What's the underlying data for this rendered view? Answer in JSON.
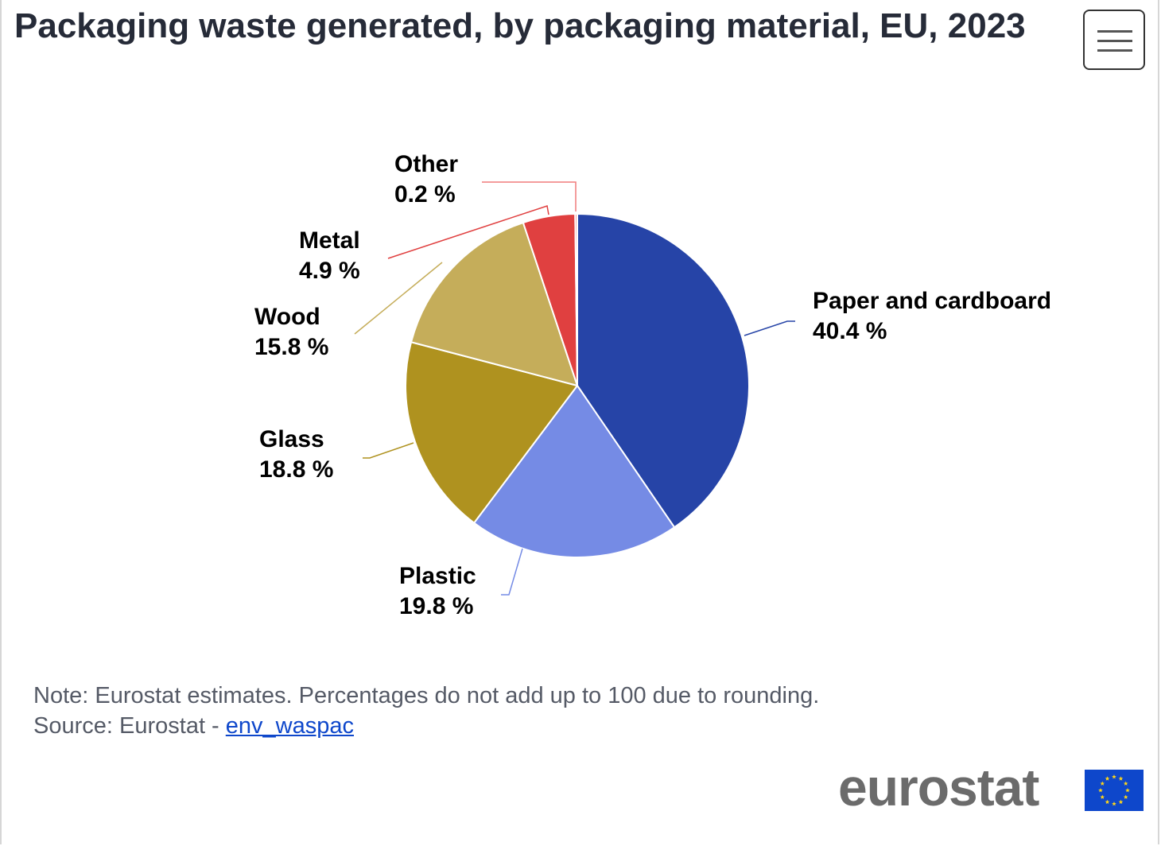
{
  "chart_data": {
    "type": "pie",
    "title": "Packaging waste generated, by packaging material, EU, 2023",
    "unit": "%",
    "slices": [
      {
        "label": "Paper and cardboard",
        "value": 40.4,
        "value_label": "40.4 %",
        "color": "#2644a7"
      },
      {
        "label": "Plastic",
        "value": 19.8,
        "value_label": "19.8 %",
        "color": "#758be5"
      },
      {
        "label": "Glass",
        "value": 18.8,
        "value_label": "18.8 %",
        "color": "#af921f"
      },
      {
        "label": "Wood",
        "value": 15.8,
        "value_label": "15.8 %",
        "color": "#c5ad5a"
      },
      {
        "label": "Metal",
        "value": 4.9,
        "value_label": "4.9 %",
        "color": "#e04040"
      },
      {
        "label": "Other",
        "value": 0.2,
        "value_label": "0.2 %",
        "color": "#f07c7c"
      }
    ]
  },
  "note": {
    "text": "Note: Eurostat estimates. Percentages do not add up to 100 due to rounding.",
    "source_prefix": "Source: Eurostat - ",
    "source_link": "env_waspac"
  },
  "logo": {
    "text": "eurostat"
  },
  "menu": {
    "icon": "hamburger-menu-icon"
  }
}
